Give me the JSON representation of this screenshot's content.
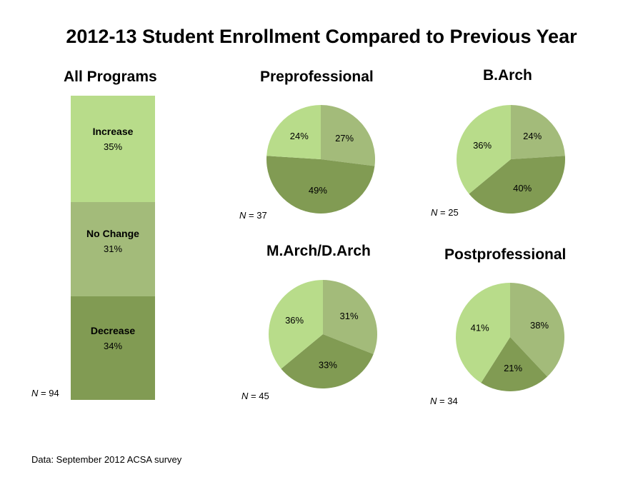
{
  "title": "2012-13 Student Enrollment Compared to Previous Year",
  "source": "Data: September 2012 ACSA survey",
  "colors": {
    "increase": "#b8dc8a",
    "no_change": "#a3bb7a",
    "decrease": "#819b53"
  },
  "chart_data": [
    {
      "type": "bar",
      "stacked": true,
      "title": "All Programs",
      "n_label": "N",
      "n_value": "= 94",
      "categories": [
        "Increase",
        "No Change",
        "Decrease"
      ],
      "values": [
        35,
        31,
        34
      ],
      "value_labels": [
        "35%",
        "31%",
        "34%"
      ]
    },
    {
      "type": "pie",
      "title": "Preprofessional",
      "n_label": "N",
      "n_value": "= 37",
      "categories": [
        "No Change",
        "Decrease",
        "Increase"
      ],
      "values": [
        27,
        49,
        24
      ],
      "value_labels": [
        "27%",
        "49%",
        "24%"
      ]
    },
    {
      "type": "pie",
      "title": "B.Arch",
      "n_label": "N",
      "n_value": "= 25",
      "categories": [
        "No Change",
        "Decrease",
        "Increase"
      ],
      "values": [
        24,
        40,
        36
      ],
      "value_labels": [
        "24%",
        "40%",
        "36%"
      ]
    },
    {
      "type": "pie",
      "title": "M.Arch/D.Arch",
      "n_label": "N",
      "n_value": "= 45",
      "categories": [
        "No Change",
        "Decrease",
        "Increase"
      ],
      "values": [
        31,
        33,
        36
      ],
      "value_labels": [
        "31%",
        "33%",
        "36%"
      ]
    },
    {
      "type": "pie",
      "title": "Postprofessional",
      "n_label": "N",
      "n_value": "= 34",
      "categories": [
        "No Change",
        "Decrease",
        "Increase"
      ],
      "values": [
        38,
        21,
        41
      ],
      "value_labels": [
        "38%",
        "21%",
        "41%"
      ]
    }
  ]
}
